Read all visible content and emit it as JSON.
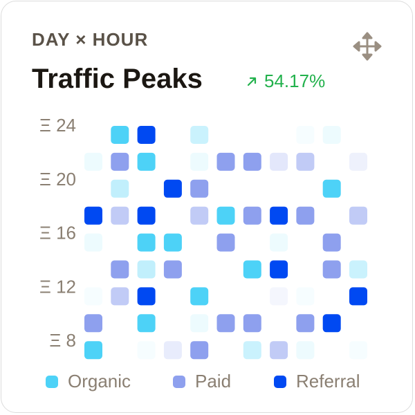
{
  "header": {
    "eyebrow": "DAY × HOUR",
    "title": "Traffic Peaks",
    "delta": "54.17%",
    "delta_icon": "arrow-up-right-icon",
    "menu_icon": "move-arrows-icon"
  },
  "colors": {
    "organic": "#4dd2f7",
    "paid": "#8ea0ee",
    "referral": "#0049f2",
    "delta": "#22b14c",
    "text_muted": "#8a7f72",
    "title": "#1b1712"
  },
  "legend": [
    {
      "label": "Organic",
      "key": "organic"
    },
    {
      "label": "Paid",
      "key": "paid"
    },
    {
      "label": "Referral",
      "key": "referral"
    }
  ],
  "chart_data": {
    "type": "heatmap",
    "title": "Traffic Peaks",
    "y_tick_labels": [
      "Ξ 24",
      "Ξ 20",
      "Ξ 16",
      "Ξ 12",
      "Ξ 8"
    ],
    "y_tick_values": [
      24,
      20,
      16,
      12,
      8
    ],
    "rows_top_to_bottom": [
      24,
      22,
      20,
      18,
      16,
      14,
      12,
      10,
      8
    ],
    "columns": 11,
    "series": [
      {
        "name": "Organic",
        "key": "organic"
      },
      {
        "name": "Paid",
        "key": "paid"
      },
      {
        "name": "Referral",
        "key": "referral"
      }
    ],
    "cells": [
      {
        "row": 0,
        "col": 1,
        "series": "organic",
        "intensity": 1.0
      },
      {
        "row": 0,
        "col": 2,
        "series": "referral",
        "intensity": 1.0
      },
      {
        "row": 0,
        "col": 4,
        "series": "organic",
        "intensity": 0.3
      },
      {
        "row": 0,
        "col": 8,
        "series": "organic",
        "intensity": 0.05
      },
      {
        "row": 0,
        "col": 9,
        "series": "organic",
        "intensity": 0.1
      },
      {
        "row": 1,
        "col": 0,
        "series": "organic",
        "intensity": 0.1
      },
      {
        "row": 1,
        "col": 1,
        "series": "paid",
        "intensity": 1.0
      },
      {
        "row": 1,
        "col": 2,
        "series": "organic",
        "intensity": 1.0
      },
      {
        "row": 1,
        "col": 4,
        "series": "organic",
        "intensity": 0.1
      },
      {
        "row": 1,
        "col": 5,
        "series": "paid",
        "intensity": 1.0
      },
      {
        "row": 1,
        "col": 6,
        "series": "paid",
        "intensity": 1.0
      },
      {
        "row": 1,
        "col": 7,
        "series": "paid",
        "intensity": 0.25
      },
      {
        "row": 1,
        "col": 8,
        "series": "paid",
        "intensity": 0.55
      },
      {
        "row": 1,
        "col": 10,
        "series": "paid",
        "intensity": 0.15
      },
      {
        "row": 2,
        "col": 1,
        "series": "organic",
        "intensity": 0.35
      },
      {
        "row": 2,
        "col": 3,
        "series": "referral",
        "intensity": 1.0
      },
      {
        "row": 2,
        "col": 4,
        "series": "paid",
        "intensity": 1.0
      },
      {
        "row": 2,
        "col": 9,
        "series": "organic",
        "intensity": 1.0
      },
      {
        "row": 3,
        "col": 0,
        "series": "referral",
        "intensity": 1.0
      },
      {
        "row": 3,
        "col": 1,
        "series": "paid",
        "intensity": 0.55
      },
      {
        "row": 3,
        "col": 2,
        "series": "referral",
        "intensity": 1.0
      },
      {
        "row": 3,
        "col": 4,
        "series": "paid",
        "intensity": 0.55
      },
      {
        "row": 3,
        "col": 5,
        "series": "organic",
        "intensity": 1.0
      },
      {
        "row": 3,
        "col": 6,
        "series": "paid",
        "intensity": 1.0
      },
      {
        "row": 3,
        "col": 7,
        "series": "referral",
        "intensity": 1.0
      },
      {
        "row": 3,
        "col": 8,
        "series": "paid",
        "intensity": 1.0
      },
      {
        "row": 3,
        "col": 10,
        "series": "paid",
        "intensity": 0.55
      },
      {
        "row": 4,
        "col": 0,
        "series": "organic",
        "intensity": 0.1
      },
      {
        "row": 4,
        "col": 2,
        "series": "organic",
        "intensity": 1.0
      },
      {
        "row": 4,
        "col": 3,
        "series": "organic",
        "intensity": 1.0
      },
      {
        "row": 4,
        "col": 5,
        "series": "paid",
        "intensity": 1.0
      },
      {
        "row": 4,
        "col": 7,
        "series": "organic",
        "intensity": 0.1
      },
      {
        "row": 4,
        "col": 9,
        "series": "paid",
        "intensity": 1.0
      },
      {
        "row": 5,
        "col": 1,
        "series": "paid",
        "intensity": 1.0
      },
      {
        "row": 5,
        "col": 2,
        "series": "organic",
        "intensity": 0.35
      },
      {
        "row": 5,
        "col": 3,
        "series": "paid",
        "intensity": 1.0
      },
      {
        "row": 5,
        "col": 6,
        "series": "organic",
        "intensity": 1.0
      },
      {
        "row": 5,
        "col": 7,
        "series": "referral",
        "intensity": 1.0
      },
      {
        "row": 5,
        "col": 9,
        "series": "paid",
        "intensity": 1.0
      },
      {
        "row": 5,
        "col": 10,
        "series": "organic",
        "intensity": 0.3
      },
      {
        "row": 6,
        "col": 0,
        "series": "organic",
        "intensity": 0.05
      },
      {
        "row": 6,
        "col": 1,
        "series": "paid",
        "intensity": 0.55
      },
      {
        "row": 6,
        "col": 2,
        "series": "referral",
        "intensity": 1.0
      },
      {
        "row": 6,
        "col": 4,
        "series": "organic",
        "intensity": 1.0
      },
      {
        "row": 6,
        "col": 7,
        "series": "paid",
        "intensity": 0.1
      },
      {
        "row": 6,
        "col": 8,
        "series": "organic",
        "intensity": 0.05
      },
      {
        "row": 6,
        "col": 10,
        "series": "referral",
        "intensity": 1.0
      },
      {
        "row": 7,
        "col": 0,
        "series": "paid",
        "intensity": 1.0
      },
      {
        "row": 7,
        "col": 2,
        "series": "organic",
        "intensity": 1.0
      },
      {
        "row": 7,
        "col": 4,
        "series": "organic",
        "intensity": 0.1
      },
      {
        "row": 7,
        "col": 5,
        "series": "paid",
        "intensity": 1.0
      },
      {
        "row": 7,
        "col": 6,
        "series": "paid",
        "intensity": 1.0
      },
      {
        "row": 7,
        "col": 8,
        "series": "paid",
        "intensity": 1.0
      },
      {
        "row": 7,
        "col": 9,
        "series": "referral",
        "intensity": 1.0
      },
      {
        "row": 8,
        "col": 0,
        "series": "organic",
        "intensity": 1.0
      },
      {
        "row": 8,
        "col": 2,
        "series": "organic",
        "intensity": 0.05
      },
      {
        "row": 8,
        "col": 3,
        "series": "paid",
        "intensity": 0.2
      },
      {
        "row": 8,
        "col": 4,
        "series": "paid",
        "intensity": 1.0
      },
      {
        "row": 8,
        "col": 6,
        "series": "organic",
        "intensity": 0.3
      },
      {
        "row": 8,
        "col": 7,
        "series": "paid",
        "intensity": 0.55
      },
      {
        "row": 8,
        "col": 8,
        "series": "organic",
        "intensity": 0.1
      },
      {
        "row": 8,
        "col": 10,
        "series": "organic",
        "intensity": 0.05
      }
    ]
  }
}
